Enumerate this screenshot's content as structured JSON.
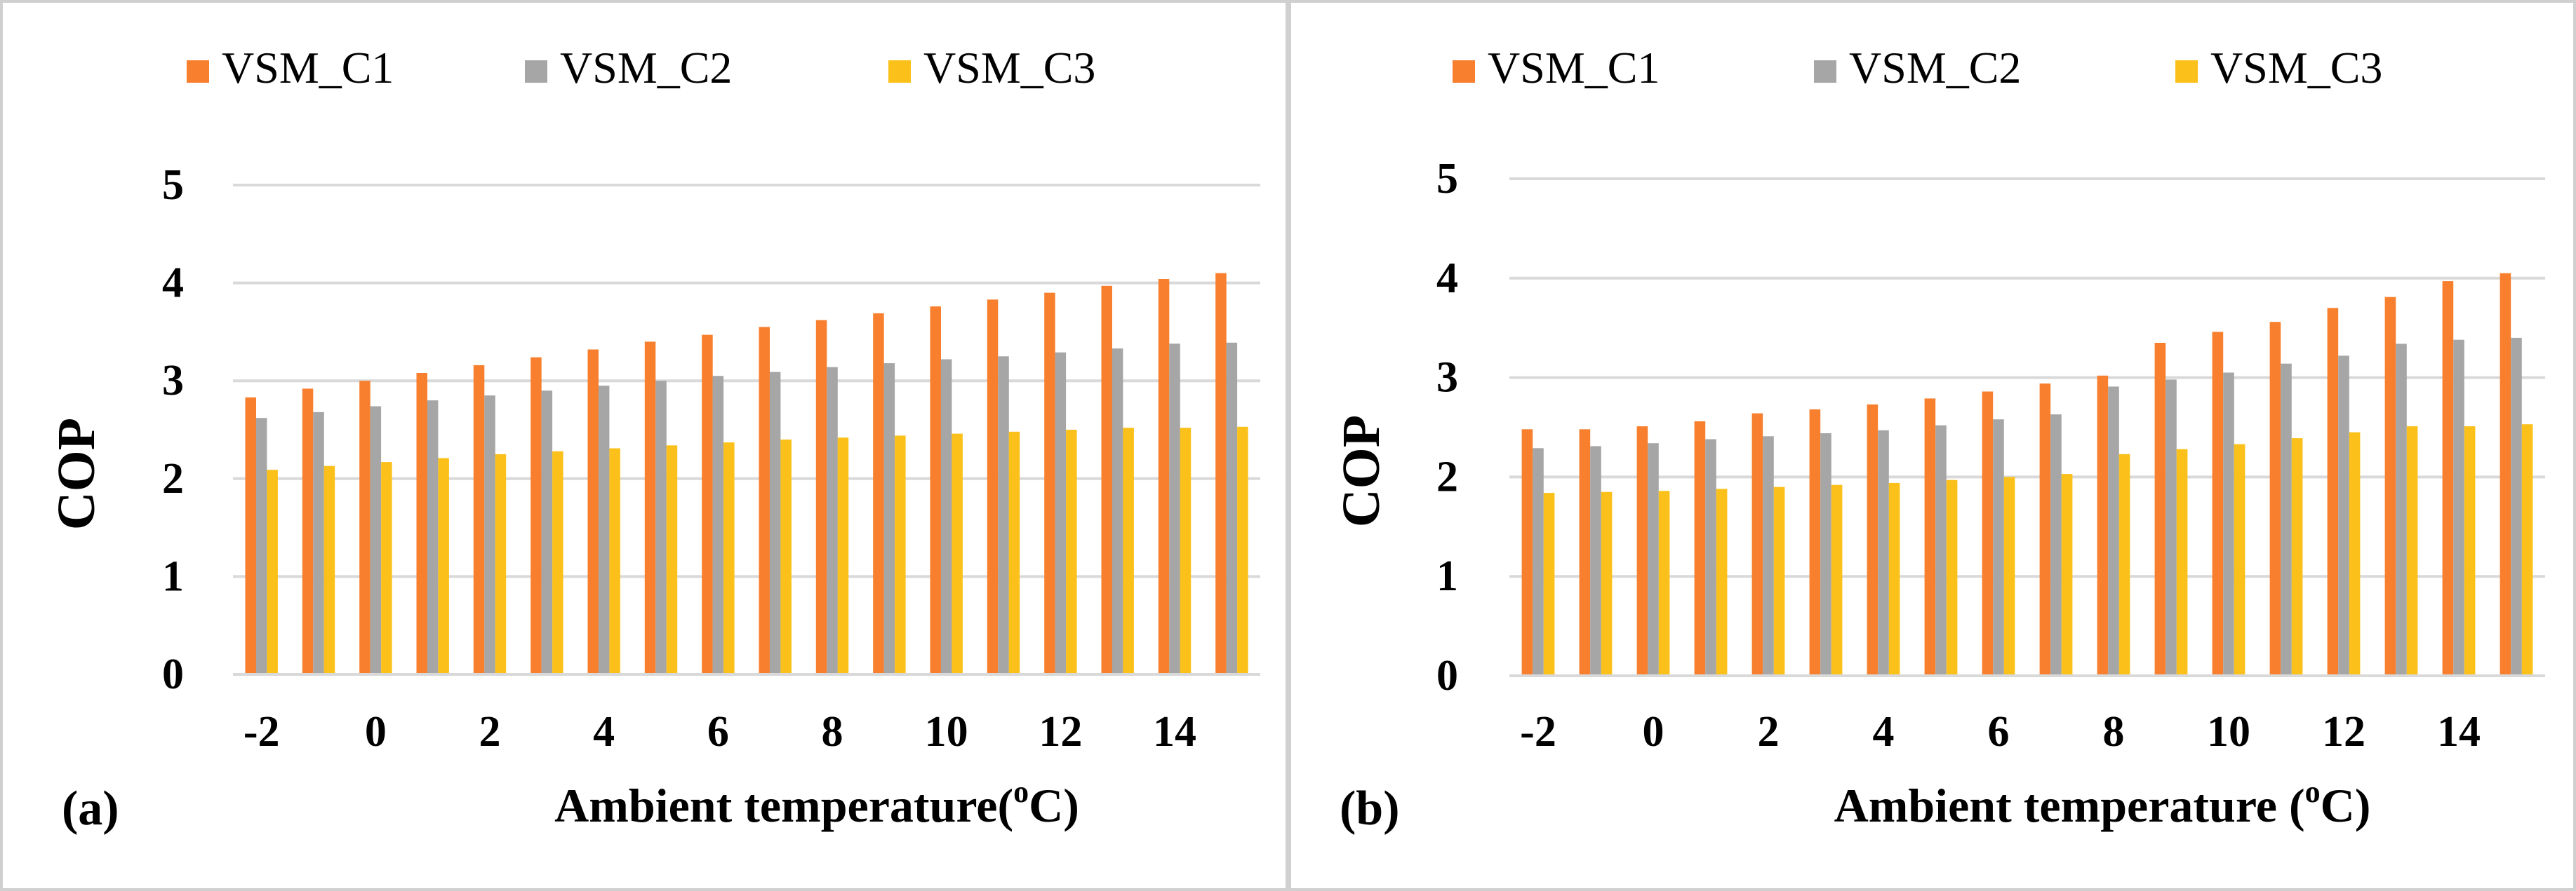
{
  "colors": {
    "VSM_C1": "#f77f2e",
    "VSM_C2": "#a6a6a6",
    "VSM_C3": "#fbc11a",
    "grid": "#d9d9d9",
    "frame": "#d0d0d0"
  },
  "chart_data": [
    {
      "type": "bar",
      "panel_label": "(a)",
      "title": "",
      "xlabel": "Ambient temperature(",
      "xlabel_sup": "o",
      "xlabel_unit": "C)",
      "ylabel": "COP",
      "ylim": [
        0,
        5
      ],
      "yticks": [
        0,
        1,
        2,
        3,
        4,
        5
      ],
      "grid": true,
      "legend_position": "top",
      "categories": [
        -2,
        -1,
        0,
        1,
        2,
        3,
        4,
        5,
        6,
        7,
        8,
        9,
        10,
        11,
        12,
        13,
        14,
        15
      ],
      "x_tick_labels": [
        "-2",
        "",
        "0",
        "",
        "2",
        "",
        "4",
        "",
        "6",
        "",
        "8",
        "",
        "10",
        "",
        "12",
        "",
        "14",
        ""
      ],
      "series": [
        {
          "name": "VSM_C1",
          "values": [
            2.83,
            2.92,
            3.0,
            3.08,
            3.16,
            3.24,
            3.32,
            3.4,
            3.47,
            3.55,
            3.62,
            3.69,
            3.76,
            3.83,
            3.9,
            3.97,
            4.04,
            4.1
          ]
        },
        {
          "name": "VSM_C2",
          "values": [
            2.62,
            2.68,
            2.74,
            2.8,
            2.85,
            2.9,
            2.95,
            3.0,
            3.05,
            3.09,
            3.14,
            3.18,
            3.22,
            3.25,
            3.29,
            3.33,
            3.38,
            3.39
          ]
        },
        {
          "name": "VSM_C3",
          "values": [
            2.09,
            2.13,
            2.17,
            2.21,
            2.25,
            2.28,
            2.31,
            2.34,
            2.37,
            2.4,
            2.42,
            2.44,
            2.46,
            2.48,
            2.5,
            2.52,
            2.52,
            2.53
          ]
        }
      ]
    },
    {
      "type": "bar",
      "panel_label": "(b)",
      "title": "",
      "xlabel": "Ambient temperature (",
      "xlabel_sup": "o",
      "xlabel_unit": "C)",
      "ylabel": "COP",
      "ylim": [
        0,
        5
      ],
      "yticks": [
        0,
        1,
        2,
        3,
        4,
        5
      ],
      "grid": true,
      "legend_position": "top",
      "categories": [
        -2,
        -1,
        0,
        1,
        2,
        3,
        4,
        5,
        6,
        7,
        8,
        9,
        10,
        11,
        12,
        13,
        14,
        15
      ],
      "x_tick_labels": [
        "-2",
        "",
        "0",
        "",
        "2",
        "",
        "4",
        "",
        "6",
        "",
        "8",
        "",
        "10",
        "",
        "12",
        "",
        "14",
        ""
      ],
      "series": [
        {
          "name": "VSM_C1",
          "values": [
            2.48,
            2.48,
            2.51,
            2.56,
            2.64,
            2.68,
            2.73,
            2.79,
            2.86,
            2.94,
            3.02,
            3.35,
            3.46,
            3.56,
            3.7,
            3.81,
            3.97,
            4.05
          ]
        },
        {
          "name": "VSM_C2",
          "values": [
            2.29,
            2.31,
            2.34,
            2.38,
            2.41,
            2.44,
            2.47,
            2.52,
            2.58,
            2.63,
            2.91,
            2.98,
            3.05,
            3.14,
            3.22,
            3.34,
            3.38,
            3.4
          ]
        },
        {
          "name": "VSM_C3",
          "values": [
            1.84,
            1.85,
            1.86,
            1.88,
            1.9,
            1.92,
            1.94,
            1.97,
            2.0,
            2.03,
            2.23,
            2.28,
            2.33,
            2.39,
            2.45,
            2.51,
            2.51,
            2.53
          ]
        }
      ]
    }
  ]
}
